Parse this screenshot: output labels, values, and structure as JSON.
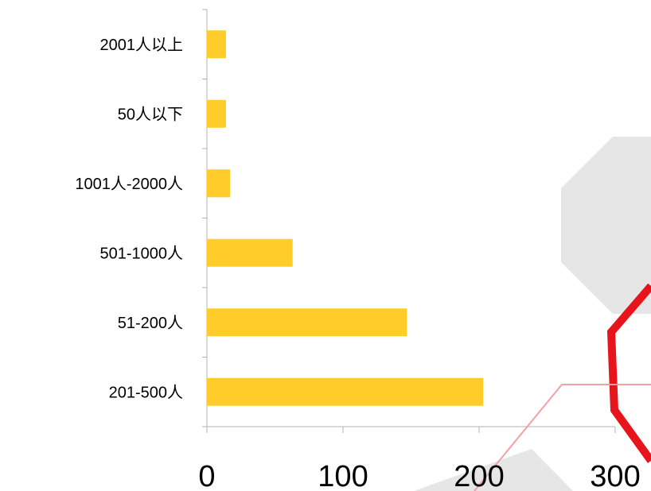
{
  "chart_data": {
    "type": "bar",
    "orientation": "horizontal",
    "categories": [
      "2001人以上",
      "50人以下",
      "1001人-2000人",
      "501-1000人",
      "51-200人",
      "201-500人"
    ],
    "values": [
      14,
      14,
      17,
      63,
      147,
      203
    ],
    "xlim": [
      0,
      300
    ],
    "xticks": [
      "0",
      "100",
      "200",
      "300"
    ],
    "title": "",
    "xlabel": "",
    "ylabel": "",
    "grid": false,
    "legend": "none"
  },
  "colors": {
    "bar": "#FFCC29",
    "axis": "#b3b3b3",
    "decor_gray": "#e6e6e6",
    "decor_red": "#e8141c",
    "decor_red_light": "#f3a0a6"
  }
}
